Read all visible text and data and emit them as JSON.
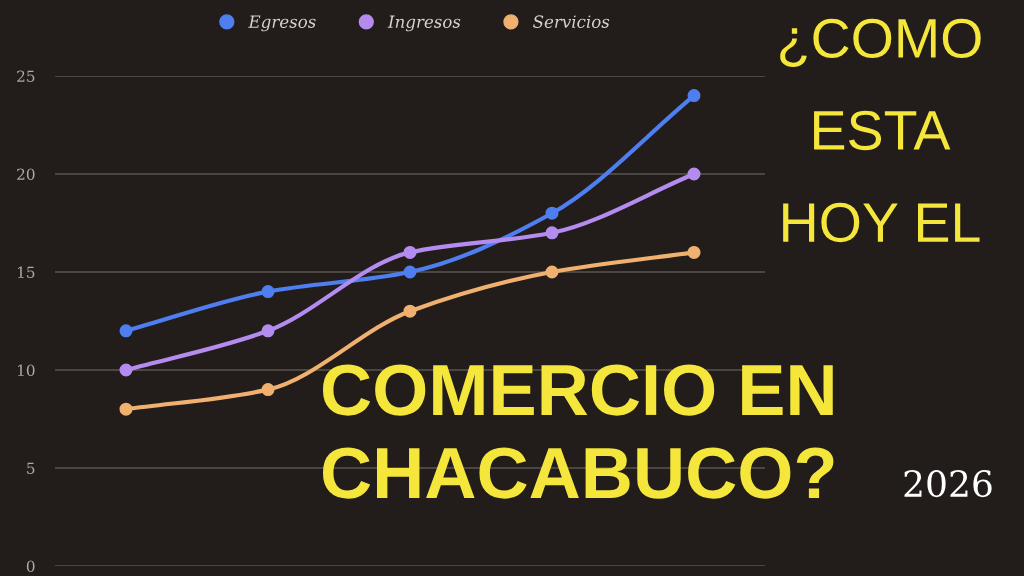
{
  "chart_data": {
    "type": "line",
    "categories": [
      null,
      null,
      null,
      null,
      null
    ],
    "series": [
      {
        "name": "Egresos",
        "color": "#4f7ef0",
        "values": [
          12,
          14,
          15,
          18,
          24
        ]
      },
      {
        "name": "Ingresos",
        "color": "#b48cf0",
        "values": [
          10,
          12,
          16,
          17,
          20
        ]
      },
      {
        "name": "Servicios",
        "color": "#f0b070",
        "values": [
          8,
          9,
          13,
          15,
          16
        ]
      }
    ],
    "ylim": [
      0,
      25
    ],
    "yticks": [
      0,
      5,
      10,
      15,
      20,
      25
    ],
    "grid": "y",
    "legend": "top",
    "marker": "circle",
    "line_style": "solid",
    "tick_labels": "y",
    "annotations": [
      "¿COMO\nESTA\nHOY EL",
      "COMERCIO EN\nCHACABUCO?",
      "2026"
    ]
  }
}
